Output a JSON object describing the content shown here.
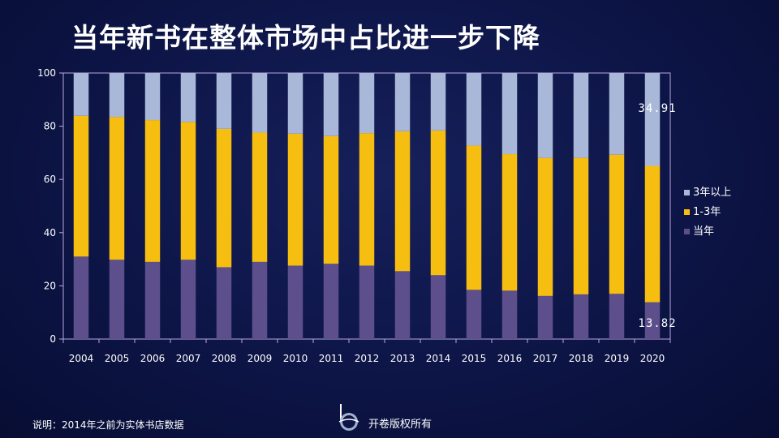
{
  "title": "当年新书在整体市场中占比进一步下降",
  "footnote": "说明：2014年之前为实体书店数据",
  "copyright": "开卷版权所有",
  "logo_icon": "openbook-logo-icon",
  "colors": {
    "background": "#0d1547",
    "axis": "#b8a8e0",
    "text": "#ffffff",
    "series_current": "#5c4f8c",
    "series_1_3": "#f7be12",
    "series_3plus": "#a9b8d8"
  },
  "chart_data": {
    "type": "bar",
    "stacked": true,
    "title": "当年新书在整体市场中占比进一步下降",
    "xlabel": "",
    "ylabel": "",
    "ylim": [
      0,
      100
    ],
    "yticks": [
      0,
      20,
      40,
      60,
      80,
      100
    ],
    "legend_position": "right",
    "categories": [
      "2004",
      "2005",
      "2006",
      "2007",
      "2008",
      "2009",
      "2010",
      "2011",
      "2012",
      "2013",
      "2014",
      "2015",
      "2016",
      "2017",
      "2018",
      "2019",
      "2020"
    ],
    "series": [
      {
        "name": "当年",
        "color": "#5c4f8c",
        "values": [
          31.0,
          29.8,
          29.0,
          29.8,
          27.0,
          29.0,
          27.6,
          28.3,
          27.6,
          25.5,
          24.0,
          18.5,
          18.2,
          16.2,
          16.8,
          17.0,
          13.82
        ]
      },
      {
        "name": "1-3年",
        "color": "#f7be12",
        "values": [
          52.9,
          53.7,
          53.3,
          51.8,
          52.0,
          48.6,
          49.6,
          48.0,
          49.8,
          52.6,
          54.4,
          54.2,
          51.3,
          51.9,
          51.3,
          52.3,
          51.27
        ]
      },
      {
        "name": "3年以上",
        "color": "#a9b8d8",
        "values": [
          16.1,
          16.5,
          17.7,
          18.4,
          21.0,
          22.4,
          22.8,
          23.7,
          22.6,
          21.9,
          21.6,
          27.3,
          30.5,
          31.9,
          31.9,
          30.7,
          34.91
        ]
      }
    ],
    "legend_order": [
      "3年以上",
      "1-3年",
      "当年"
    ],
    "data_labels": [
      {
        "category": "2020",
        "series": "3年以上",
        "text": "34.91"
      },
      {
        "category": "2020",
        "series": "当年",
        "text": "13.82"
      }
    ]
  }
}
